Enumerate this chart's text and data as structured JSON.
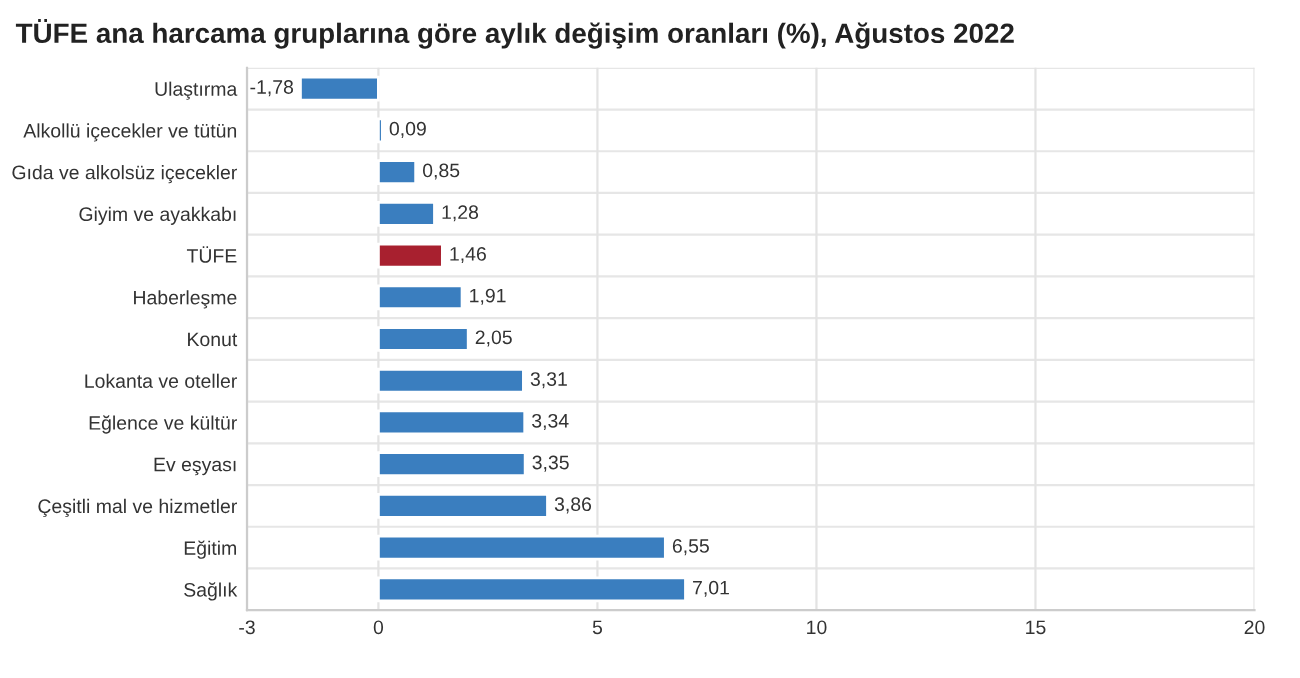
{
  "chart_data": {
    "type": "bar",
    "orientation": "horizontal",
    "title": "TÜFE ana harcama gruplarına göre aylık değişim oranları (%), Ağustos 2022",
    "categories": [
      "Ulaştırma",
      "Alkollü içecekler ve tütün",
      "Gıda ve alkolsüz içecekler",
      "Giyim ve ayakkabı",
      "TÜFE",
      "Haberleşme",
      "Konut",
      "Lokanta ve oteller",
      "Eğlence ve kültür",
      "Ev eşyası",
      "Çeşitli mal ve hizmetler",
      "Eğitim",
      "Sağlık"
    ],
    "values": [
      -1.78,
      0.09,
      0.85,
      1.28,
      1.46,
      1.91,
      2.05,
      3.31,
      3.34,
      3.35,
      3.86,
      6.55,
      7.01
    ],
    "value_labels": [
      "-1,78",
      "0,09",
      "0,85",
      "1,28",
      "1,46",
      "1,91",
      "2,05",
      "3,31",
      "3,34",
      "3,35",
      "3,86",
      "6,55",
      "7,01"
    ],
    "colors": [
      "#3a7ebf",
      "#3a7ebf",
      "#3a7ebf",
      "#3a7ebf",
      "#a8202f",
      "#3a7ebf",
      "#3a7ebf",
      "#3a7ebf",
      "#3a7ebf",
      "#3a7ebf",
      "#3a7ebf",
      "#3a7ebf",
      "#3a7ebf"
    ],
    "xlim": [
      -3,
      20
    ],
    "xticks": [
      -3,
      0,
      5,
      10,
      15,
      20
    ],
    "grid": "x",
    "legend": false
  }
}
